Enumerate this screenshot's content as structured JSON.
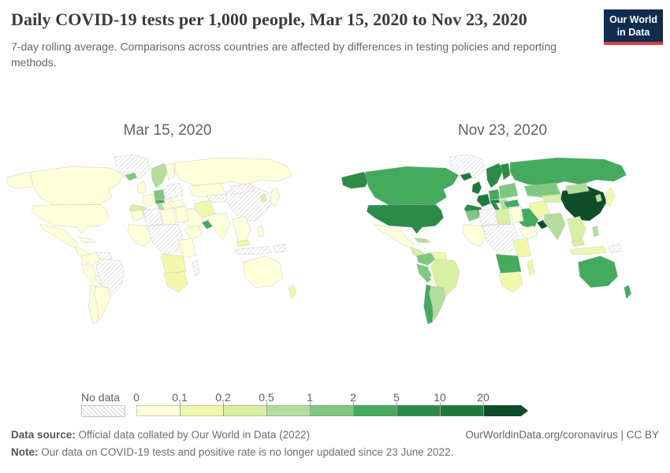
{
  "header": {
    "title": "Daily COVID-19 tests per 1,000 people, Mar 15, 2020 to Nov 23, 2020",
    "subtitle": "7-day rolling average. Comparisons across countries are affected by differences in testing policies and reporting methods.",
    "logo_line1": "Our World",
    "logo_line2": "in Data",
    "logo_bg_color": "#102d50",
    "logo_accent_color": "#dc3e42"
  },
  "footer": {
    "source_label": "Data source:",
    "source_text": " Official data collated by Our World in Data (2022)",
    "link": "OurWorldinData.org/coronavirus | CC BY",
    "note_label": "Note:",
    "note_text": " Our data on COVID-19 tests and positive rate is no longer updated since 23 June 2022."
  },
  "chart_data": {
    "type": "heatmap",
    "variant": "choropleth world map comparison, two dates side by side",
    "unit": "daily COVID-19 tests per 1,000 people (7-day rolling average)",
    "maps": [
      {
        "key": "mar15",
        "label": "Mar 15, 2020"
      },
      {
        "key": "nov23",
        "label": "Nov 23, 2020"
      }
    ],
    "scale": {
      "no_data_label": "No data",
      "no_data_pattern": "diagonal-hatch",
      "tick_labels": [
        "0",
        "0.1",
        "0.2",
        "0.5",
        "1",
        "2",
        "5",
        "10",
        "20"
      ],
      "bucket_keys": [
        "0-0.1",
        "0.1-0.2",
        "0.2-0.5",
        "0.5-1",
        "1-2",
        "2-5",
        "5-10",
        "10-20",
        "20+"
      ],
      "colors": [
        "#fefed8",
        "#f1f8ac",
        "#d9efa3",
        "#b2dd9d",
        "#7fc87f",
        "#44ab5e",
        "#2b8c47",
        "#1e7a3a",
        "#0f4d28"
      ]
    },
    "regions": {
      "greenland": {
        "name": "Greenland",
        "mar15": "no-data",
        "nov23": "no-data"
      },
      "alaska": {
        "name": "Alaska (US)",
        "mar15": "0-0.1",
        "nov23": "5-10"
      },
      "canada": {
        "name": "Canada",
        "mar15": "0-0.1",
        "nov23": "2-5"
      },
      "usa": {
        "name": "United States",
        "mar15": "0-0.1",
        "nov23": "5-10"
      },
      "mexico": {
        "name": "Mexico",
        "mar15": "0-0.1",
        "nov23": "0-0.1"
      },
      "central-america": {
        "name": "Central America",
        "mar15": "0-0.1",
        "nov23": "0.2-0.5"
      },
      "caribbean": {
        "name": "Caribbean",
        "mar15": "0-0.1",
        "nov23": "0.5-1"
      },
      "colombia": {
        "name": "Colombia",
        "mar15": "0-0.1",
        "nov23": "1-2"
      },
      "venezuela": {
        "name": "Venezuela",
        "mar15": "no-data",
        "nov23": "0.1-0.2"
      },
      "peru": {
        "name": "Peru",
        "mar15": "0-0.1",
        "nov23": "1-2"
      },
      "bolivia": {
        "name": "Bolivia",
        "mar15": "0-0.1",
        "nov23": "0-0.1"
      },
      "brazil": {
        "name": "Brazil",
        "mar15": "no-data",
        "nov23": "0.2-0.5"
      },
      "chile": {
        "name": "Chile",
        "mar15": "0-0.1",
        "nov23": "2-5"
      },
      "argentina": {
        "name": "Argentina",
        "mar15": "0-0.1",
        "nov23": "0.5-1"
      },
      "russia": {
        "name": "Russia",
        "mar15": "0-0.1",
        "nov23": "2-5"
      },
      "eastern-europe": {
        "name": "Eastern Europe",
        "mar15": "no-data",
        "nov23": "1-2"
      },
      "scandinavia": {
        "name": "Norway & Sweden",
        "mar15": "0.5-1",
        "nov23": "5-10"
      },
      "finland": {
        "name": "Finland",
        "mar15": "0-0.1",
        "nov23": "5-10"
      },
      "iceland": {
        "name": "Iceland",
        "mar15": "1-2",
        "nov23": "10-20"
      },
      "uk-ireland": {
        "name": "United Kingdom & Ireland",
        "mar15": "0-0.1",
        "nov23": "10-20"
      },
      "france": {
        "name": "France",
        "mar15": "0-0.1",
        "nov23": "10-20"
      },
      "iberia": {
        "name": "Spain & Portugal",
        "mar15": "0.2-0.5",
        "nov23": "5-10"
      },
      "germany-central-europe": {
        "name": "Germany & Central Europe",
        "mar15": "1-2",
        "nov23": "2-5"
      },
      "austria-switzerland": {
        "name": "Austria & Switzerland",
        "mar15": "2-5",
        "nov23": "10-20"
      },
      "italy": {
        "name": "Italy",
        "mar15": "0.5-1",
        "nov23": "5-10"
      },
      "balkans": {
        "name": "Balkans & Greece",
        "mar15": "0-0.1",
        "nov23": "0.5-1"
      },
      "turkey": {
        "name": "Turkey",
        "mar15": "0-0.1",
        "nov23": "2-5"
      },
      "kazakhstan": {
        "name": "Kazakhstan",
        "mar15": "0-0.1",
        "nov23": "1-2"
      },
      "central-asia": {
        "name": "Central Asia",
        "mar15": "no-data",
        "nov23": "0.2-0.5"
      },
      "iran": {
        "name": "Iran",
        "mar15": "0.1-0.2",
        "nov23": "0.1-0.2"
      },
      "middle-east": {
        "name": "Saudi Arabia & Middle East",
        "mar15": "0-0.1",
        "nov23": "2-5"
      },
      "uae-oman": {
        "name": "United Arab Emirates",
        "mar15": "2-5",
        "nov23": "20+"
      },
      "china": {
        "name": "China",
        "mar15": "no-data",
        "nov23": "20+"
      },
      "mongolia": {
        "name": "Mongolia",
        "mar15": "no-data",
        "nov23": "0.5-1"
      },
      "india": {
        "name": "India",
        "mar15": "0-0.1",
        "nov23": "0.5-1"
      },
      "se-asia": {
        "name": "Mainland Southeast Asia",
        "mar15": "0-0.1",
        "nov23": "0.2-0.5"
      },
      "malaysia": {
        "name": "Malaysia",
        "mar15": "0.1-0.2",
        "nov23": "0.2-0.5"
      },
      "indonesia": {
        "name": "Indonesia",
        "mar15": "no-data",
        "nov23": "0.1-0.2"
      },
      "philippines": {
        "name": "Philippines",
        "mar15": "0-0.1",
        "nov23": "0.5-1"
      },
      "japan": {
        "name": "Japan",
        "mar15": "0-0.1",
        "nov23": "0.1-0.2"
      },
      "south-korea": {
        "name": "South Korea",
        "mar15": "0.2-0.5",
        "nov23": "0.5-1"
      },
      "papua-new-guinea": {
        "name": "Papua New Guinea",
        "mar15": "no-data",
        "nov23": "no-data"
      },
      "australia": {
        "name": "Australia",
        "mar15": "0-0.1",
        "nov23": "2-5"
      },
      "new-zealand": {
        "name": "New Zealand",
        "mar15": "0.1-0.2",
        "nov23": "2-5"
      },
      "morocco": {
        "name": "Morocco",
        "mar15": "0-0.1",
        "nov23": "1-2"
      },
      "algeria": {
        "name": "Algeria",
        "mar15": "no-data",
        "nov23": "no-data"
      },
      "libya": {
        "name": "Libya",
        "mar15": "0-0.1",
        "nov23": "0.2-0.5"
      },
      "egypt": {
        "name": "Egypt",
        "mar15": "0-0.1",
        "nov23": "0-0.1"
      },
      "west-africa": {
        "name": "West Africa",
        "mar15": "0-0.1",
        "nov23": "0-0.1"
      },
      "sahel-central-africa": {
        "name": "Sahel & Central Africa",
        "mar15": "no-data",
        "nov23": "no-data"
      },
      "horn-of-africa": {
        "name": "Horn of Africa",
        "mar15": "0-0.1",
        "nov23": "0-0.1"
      },
      "east-africa": {
        "name": "East Africa",
        "mar15": "0-0.1",
        "nov23": "0.1-0.2"
      },
      "southern-africa-belt": {
        "name": "Botswana & Zimbabwe",
        "mar15": "0.1-0.2",
        "nov23": "2-5"
      },
      "south-africa": {
        "name": "South Africa",
        "mar15": "0.1-0.2",
        "nov23": "0.1-0.2"
      },
      "madagascar": {
        "name": "Madagascar",
        "mar15": "no-data",
        "nov23": "0.1-0.2"
      }
    }
  }
}
